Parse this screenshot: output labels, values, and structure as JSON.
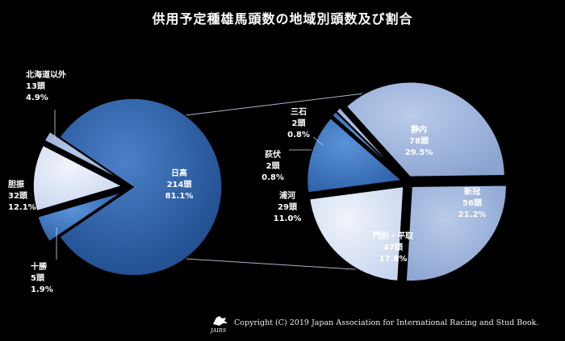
{
  "title": "供用予定種雄馬頭数の地域別頭数及び割合",
  "copyright": "Copyright (C) 2019 Japan Association for International Racing and Stud Book.",
  "logo_text": "JAIRS",
  "colors": {
    "background": "#000000",
    "hidaka": "#2a5da3",
    "dark_slice": "#3a72c2",
    "mid_slice": "#9db3dd",
    "light_slice": "#dbe5f5",
    "connector": "#aab4c4"
  },
  "chart_data": [
    {
      "type": "pie",
      "name_note": "main pie (regions of Japan)",
      "slices": [
        {
          "label": "日高",
          "count": "214頭",
          "percent": "81.1%",
          "value": 214,
          "tone": "hidaka"
        },
        {
          "label": "北海道以外",
          "count": "13頭",
          "percent": "4.9%",
          "value": 13,
          "tone": "dark_slice"
        },
        {
          "label": "胆振",
          "count": "32頭",
          "percent": "12.1%",
          "value": 32,
          "tone": "light_slice"
        },
        {
          "label": "十勝",
          "count": "5頭",
          "percent": "1.9%",
          "value": 5,
          "tone": "mid_slice"
        }
      ]
    },
    {
      "type": "pie",
      "name_note": "breakdown of 日高",
      "slices": [
        {
          "label": "静内",
          "count": "78頭",
          "percent": "29.5%",
          "value": 78,
          "tone": "mid_slice"
        },
        {
          "label": "新冠",
          "count": "56頭",
          "percent": "21.2%",
          "value": 56,
          "tone": "mid_slice"
        },
        {
          "label": "門別・平取",
          "count": "47頭",
          "percent": "17.8%",
          "value": 47,
          "tone": "light_slice"
        },
        {
          "label": "浦河",
          "count": "29頭",
          "percent": "11.0%",
          "value": 29,
          "tone": "dark_slice"
        },
        {
          "label": "荻伏",
          "count": "2頭",
          "percent": "0.8%",
          "value": 2,
          "tone": "dark_slice"
        },
        {
          "label": "三石",
          "count": "2頭",
          "percent": "0.8%",
          "value": 2,
          "tone": "mid_slice"
        }
      ]
    }
  ]
}
